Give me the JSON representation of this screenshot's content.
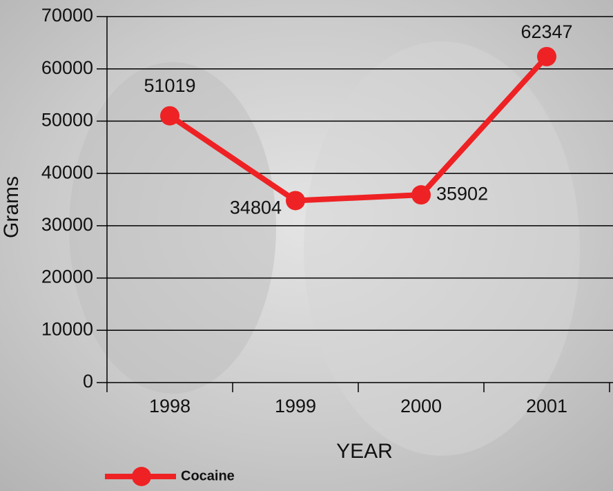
{
  "chart_data": {
    "type": "line",
    "x_label": "YEAR",
    "y_label": "Grams",
    "categories": [
      "1998",
      "1999",
      "2000",
      "2001"
    ],
    "series": [
      {
        "name": "Cocaine",
        "color": "#ee2224",
        "values": [
          51019,
          34804,
          35902,
          62347
        ]
      }
    ],
    "ylim": [
      0,
      70000
    ],
    "yticks": [
      0,
      10000,
      20000,
      30000,
      40000,
      50000,
      60000,
      70000
    ],
    "grid": true,
    "legend": "bottom-left"
  }
}
